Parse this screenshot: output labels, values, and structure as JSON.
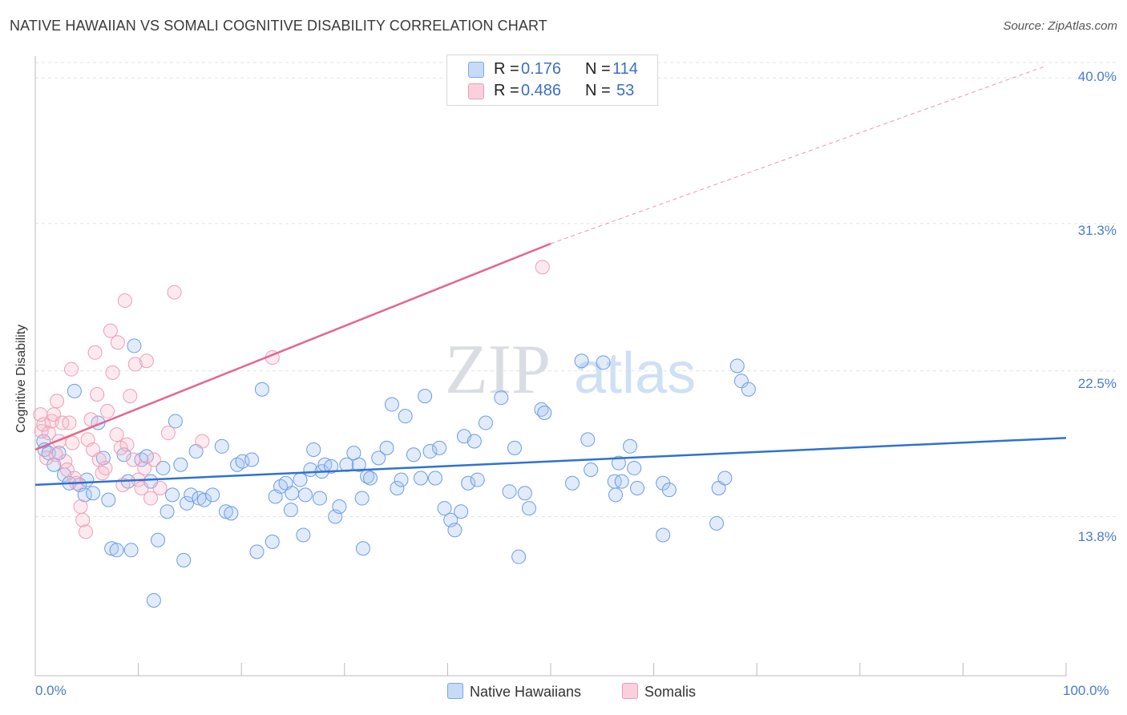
{
  "header": {
    "title": "NATIVE HAWAIIAN VS SOMALI COGNITIVE DISABILITY CORRELATION CHART",
    "source": "Source: ZipAtlas.com"
  },
  "watermark": {
    "zip": "ZIP",
    "atlas": "atlas"
  },
  "legend": {
    "rows": [
      {
        "r_label": "R = ",
        "r_value": "0.176",
        "n_label": "N = ",
        "n_value": "114",
        "color": "#a9c7f0"
      },
      {
        "r_label": "R = ",
        "r_value": "0.486",
        "n_label": "N = ",
        "n_value": "53",
        "color": "#f6b8cb"
      }
    ]
  },
  "bottom_legend": [
    {
      "label": "Native Hawaiians",
      "color": "#a9c7f0"
    },
    {
      "label": "Somalis",
      "color": "#f6b8cb"
    }
  ],
  "chart_data": {
    "type": "scatter",
    "title": "NATIVE HAWAIIAN VS SOMALI COGNITIVE DISABILITY CORRELATION CHART",
    "xlabel": "",
    "ylabel": "Cognitive Disability",
    "xlim": [
      0,
      100
    ],
    "ylim": [
      4.3,
      41.3
    ],
    "x_tick_labels": [
      "0.0%",
      "100.0%"
    ],
    "y_ticks": [
      13.8,
      22.5,
      31.3,
      40.0
    ],
    "y_tick_labels": [
      "13.8%",
      "22.5%",
      "31.3%",
      "40.0%"
    ],
    "grid": true,
    "series": [
      {
        "name": "Native Hawaiians",
        "color": "#5b93e0",
        "trend": {
          "x": [
            0,
            100
          ],
          "y": [
            15.7,
            18.5
          ],
          "dashed_to": null
        },
        "points": [
          [
            0.8,
            18.3
          ],
          [
            0.9,
            17.8
          ],
          [
            1.3,
            17.6
          ],
          [
            1.8,
            16.9
          ],
          [
            2.3,
            17.6
          ],
          [
            2.8,
            16.3
          ],
          [
            3.3,
            15.8
          ],
          [
            3.8,
            21.3
          ],
          [
            4.3,
            15.7
          ],
          [
            4.8,
            15.1
          ],
          [
            5.0,
            16.0
          ],
          [
            5.6,
            15.2
          ],
          [
            6.1,
            19.4
          ],
          [
            6.6,
            17.3
          ],
          [
            7.1,
            14.8
          ],
          [
            7.4,
            11.9
          ],
          [
            7.9,
            11.8
          ],
          [
            8.6,
            17.5
          ],
          [
            9.0,
            15.9
          ],
          [
            9.3,
            11.8
          ],
          [
            9.6,
            24.0
          ],
          [
            10.3,
            17.2
          ],
          [
            10.8,
            17.4
          ],
          [
            11.2,
            15.9
          ],
          [
            11.5,
            8.8
          ],
          [
            11.9,
            12.4
          ],
          [
            12.4,
            16.7
          ],
          [
            12.8,
            14.1
          ],
          [
            13.3,
            15.1
          ],
          [
            13.6,
            19.5
          ],
          [
            14.1,
            16.9
          ],
          [
            14.4,
            11.2
          ],
          [
            14.7,
            14.6
          ],
          [
            15.1,
            15.1
          ],
          [
            15.6,
            17.7
          ],
          [
            15.9,
            14.9
          ],
          [
            16.4,
            14.8
          ],
          [
            17.2,
            15.1
          ],
          [
            18.1,
            18.0
          ],
          [
            18.5,
            14.1
          ],
          [
            19.0,
            14.0
          ],
          [
            19.6,
            16.9
          ],
          [
            20.1,
            17.1
          ],
          [
            21.0,
            17.2
          ],
          [
            21.5,
            11.7
          ],
          [
            22.0,
            21.4
          ],
          [
            23.0,
            12.3
          ],
          [
            23.3,
            15.0
          ],
          [
            23.8,
            15.6
          ],
          [
            24.3,
            15.8
          ],
          [
            24.8,
            14.2
          ],
          [
            24.9,
            15.2
          ],
          [
            25.7,
            16.0
          ],
          [
            26.0,
            12.7
          ],
          [
            26.2,
            15.1
          ],
          [
            26.7,
            16.6
          ],
          [
            27.0,
            17.8
          ],
          [
            27.6,
            14.9
          ],
          [
            27.8,
            16.5
          ],
          [
            28.1,
            16.9
          ],
          [
            28.7,
            16.8
          ],
          [
            29.1,
            13.8
          ],
          [
            29.5,
            14.4
          ],
          [
            30.2,
            16.9
          ],
          [
            30.9,
            17.6
          ],
          [
            31.4,
            16.9
          ],
          [
            31.8,
            11.9
          ],
          [
            31.7,
            14.9
          ],
          [
            32.2,
            16.2
          ],
          [
            32.5,
            16.1
          ],
          [
            33.3,
            17.3
          ],
          [
            34.1,
            17.9
          ],
          [
            34.6,
            20.5
          ],
          [
            35.1,
            15.5
          ],
          [
            35.5,
            16.0
          ],
          [
            35.9,
            19.8
          ],
          [
            36.7,
            17.5
          ],
          [
            37.4,
            16.1
          ],
          [
            37.8,
            21.0
          ],
          [
            38.3,
            17.7
          ],
          [
            38.8,
            16.1
          ],
          [
            39.2,
            17.9
          ],
          [
            39.7,
            14.3
          ],
          [
            40.3,
            13.6
          ],
          [
            40.7,
            13.0
          ],
          [
            41.3,
            14.1
          ],
          [
            41.6,
            18.6
          ],
          [
            42.0,
            15.8
          ],
          [
            42.6,
            18.3
          ],
          [
            42.9,
            16.0
          ],
          [
            43.7,
            19.4
          ],
          [
            45.2,
            20.9
          ],
          [
            46.0,
            15.3
          ],
          [
            46.5,
            17.9
          ],
          [
            46.9,
            11.4
          ],
          [
            47.5,
            15.2
          ],
          [
            47.9,
            14.3
          ],
          [
            49.1,
            20.2
          ],
          [
            49.4,
            20.0
          ],
          [
            52.1,
            15.8
          ],
          [
            53.0,
            23.1
          ],
          [
            53.6,
            18.4
          ],
          [
            53.9,
            16.6
          ],
          [
            55.1,
            23.0
          ],
          [
            56.2,
            15.9
          ],
          [
            56.3,
            15.1
          ],
          [
            56.6,
            17.0
          ],
          [
            56.9,
            15.9
          ],
          [
            57.7,
            18.0
          ],
          [
            58.1,
            16.7
          ],
          [
            58.4,
            15.5
          ],
          [
            60.9,
            15.8
          ],
          [
            60.9,
            12.7
          ],
          [
            61.5,
            15.4
          ],
          [
            66.1,
            13.4
          ],
          [
            66.3,
            15.5
          ],
          [
            66.9,
            16.1
          ],
          [
            68.1,
            22.8
          ],
          [
            68.5,
            21.9
          ],
          [
            69.2,
            21.4
          ]
        ]
      },
      {
        "name": "Somalis",
        "color": "#ec8fae",
        "trend": {
          "x": [
            0,
            50
          ],
          "y": [
            17.8,
            30.1
          ],
          "dashed_to": [
            98,
            40.7
          ]
        },
        "points": [
          [
            0.5,
            19.9
          ],
          [
            0.6,
            18.9
          ],
          [
            0.8,
            19.3
          ],
          [
            1.1,
            17.3
          ],
          [
            1.3,
            18.8
          ],
          [
            1.6,
            19.5
          ],
          [
            1.8,
            19.9
          ],
          [
            2.0,
            17.5
          ],
          [
            2.1,
            20.7
          ],
          [
            2.3,
            18.3
          ],
          [
            2.6,
            19.4
          ],
          [
            2.9,
            17.1
          ],
          [
            3.1,
            16.6
          ],
          [
            3.3,
            19.4
          ],
          [
            3.5,
            22.6
          ],
          [
            3.6,
            18.2
          ],
          [
            3.8,
            16.1
          ],
          [
            4.0,
            15.8
          ],
          [
            4.4,
            14.4
          ],
          [
            4.6,
            13.6
          ],
          [
            4.9,
            12.9
          ],
          [
            5.1,
            18.4
          ],
          [
            5.4,
            19.6
          ],
          [
            5.6,
            17.8
          ],
          [
            5.8,
            23.6
          ],
          [
            6.0,
            21.1
          ],
          [
            6.2,
            17.2
          ],
          [
            6.5,
            16.4
          ],
          [
            6.8,
            16.7
          ],
          [
            7.0,
            20.1
          ],
          [
            7.3,
            24.9
          ],
          [
            7.5,
            22.4
          ],
          [
            7.9,
            18.7
          ],
          [
            8.0,
            24.2
          ],
          [
            8.3,
            17.9
          ],
          [
            8.5,
            15.7
          ],
          [
            8.7,
            26.7
          ],
          [
            8.9,
            18.1
          ],
          [
            9.2,
            21.0
          ],
          [
            9.5,
            17.2
          ],
          [
            9.7,
            22.9
          ],
          [
            10.0,
            16.0
          ],
          [
            10.3,
            15.5
          ],
          [
            10.6,
            16.7
          ],
          [
            10.8,
            23.1
          ],
          [
            11.2,
            14.9
          ],
          [
            11.5,
            17.2
          ],
          [
            12.1,
            15.5
          ],
          [
            12.9,
            18.8
          ],
          [
            13.5,
            27.2
          ],
          [
            16.2,
            18.3
          ],
          [
            23.0,
            23.3
          ],
          [
            49.2,
            28.7
          ]
        ]
      }
    ]
  }
}
